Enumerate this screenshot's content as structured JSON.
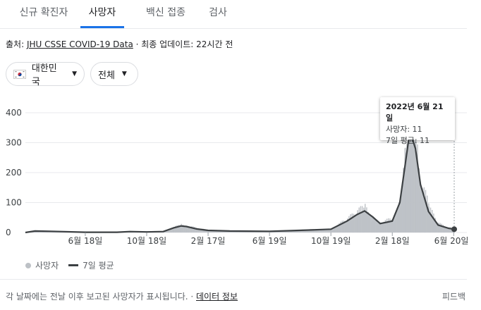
{
  "tabs": [
    {
      "label": "신규 확진자",
      "active": false
    },
    {
      "label": "사망자",
      "active": true
    },
    {
      "label": "백신 접종",
      "active": false
    },
    {
      "label": "검사",
      "active": false
    }
  ],
  "source": {
    "prefix": "출처: ",
    "link": "JHU CSSE COVID-19 Data",
    "suffix": " · 최종 업데이트: 22시간 전"
  },
  "filters": {
    "country": "대한민국",
    "scope": "전체"
  },
  "tooltip": {
    "date": "2022년 6월 21일",
    "deaths": "사망자: 11",
    "avg": "7일 평균: 11"
  },
  "legend": {
    "deaths": "사망자",
    "avg": "7일 평균"
  },
  "footer": {
    "note": "각 날짜에는 전날 이후 보고된 사망자가 표시됩니다.",
    "sep": " · ",
    "link": "데이터 정보",
    "feedback": "피드백"
  },
  "colors": {
    "bars": "#bdc1c6",
    "line": "#3c4043",
    "accent": "#1a73e8"
  },
  "chart_data": {
    "type": "area",
    "ylim": [
      0,
      400
    ],
    "yticks": [
      0,
      100,
      200,
      300,
      400
    ],
    "xtick_labels": [
      "6월 18일",
      "10월 18일",
      "2월 17일",
      "6월 19일",
      "10월 19일",
      "2월 18일",
      "6월 20일"
    ],
    "series": [
      {
        "name": "7일 평균",
        "points": [
          [
            "2020-02-20",
            0
          ],
          [
            "2020-03-10",
            5
          ],
          [
            "2020-04-10",
            4
          ],
          [
            "2020-06-18",
            1
          ],
          [
            "2020-08-20",
            1
          ],
          [
            "2020-09-15",
            3
          ],
          [
            "2020-10-18",
            2
          ],
          [
            "2020-11-20",
            3
          ],
          [
            "2020-12-10",
            15
          ],
          [
            "2020-12-25",
            22
          ],
          [
            "2021-01-05",
            20
          ],
          [
            "2021-01-25",
            12
          ],
          [
            "2021-02-17",
            7
          ],
          [
            "2021-04-01",
            5
          ],
          [
            "2021-06-19",
            4
          ],
          [
            "2021-08-01",
            6
          ],
          [
            "2021-09-01",
            8
          ],
          [
            "2021-10-01",
            10
          ],
          [
            "2021-10-19",
            11
          ],
          [
            "2021-11-20",
            38
          ],
          [
            "2021-12-10",
            60
          ],
          [
            "2021-12-25",
            72
          ],
          [
            "2022-01-10",
            52
          ],
          [
            "2022-01-25",
            30
          ],
          [
            "2022-02-18",
            38
          ],
          [
            "2022-03-05",
            100
          ],
          [
            "2022-03-15",
            220
          ],
          [
            "2022-03-25",
            340
          ],
          [
            "2022-04-05",
            280
          ],
          [
            "2022-04-15",
            160
          ],
          [
            "2022-05-01",
            70
          ],
          [
            "2022-05-20",
            25
          ],
          [
            "2022-06-10",
            14
          ],
          [
            "2022-06-21",
            11
          ]
        ]
      }
    ],
    "highlight": {
      "date": "2022-06-21",
      "deaths": 11,
      "avg": 11
    }
  }
}
